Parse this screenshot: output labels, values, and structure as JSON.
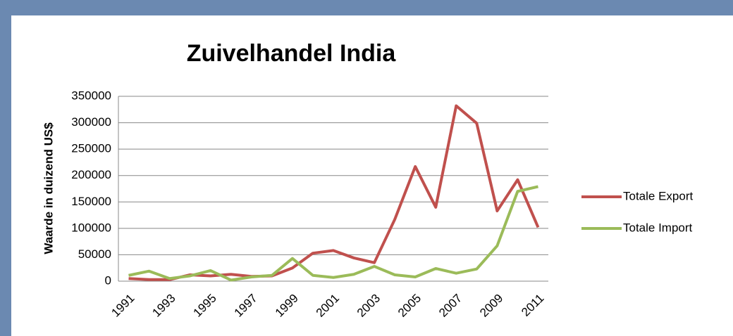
{
  "chart_data": {
    "type": "line",
    "title": "Zuivelhandel India",
    "y_label": "Waarde in duizend US$",
    "categories": [
      "1991",
      null,
      "1993",
      null,
      "1995",
      null,
      "1997",
      null,
      "1999",
      null,
      "2001",
      null,
      "2003",
      null,
      "2005",
      null,
      "2007",
      null,
      "2009",
      null,
      "2011"
    ],
    "series": [
      {
        "name": "Totale Export",
        "color": "#c0504d",
        "values": [
          5000,
          3000,
          3000,
          12000,
          10000,
          13000,
          9000,
          10000,
          25000,
          53000,
          58000,
          44000,
          35000,
          117000,
          217000,
          140000,
          332000,
          299000,
          133000,
          192000,
          102000
        ]
      },
      {
        "name": "Totale Import",
        "color": "#9bbb59",
        "values": [
          11000,
          19000,
          5000,
          10000,
          20000,
          2000,
          8000,
          11000,
          43000,
          11000,
          7000,
          13000,
          28000,
          12000,
          8000,
          24000,
          15000,
          23000,
          67000,
          170000,
          179000
        ]
      }
    ],
    "ylim": [
      0,
      350000
    ],
    "yticks": [
      0,
      50000,
      100000,
      150000,
      200000,
      250000,
      300000,
      350000
    ],
    "grid": true,
    "legend": "right"
  }
}
